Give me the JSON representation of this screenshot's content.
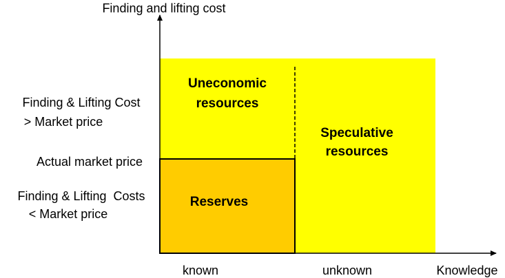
{
  "axes": {
    "y_label": "Finding and lifting cost",
    "x_label": "Knowledge"
  },
  "y_levels": {
    "above": [
      "Finding & Lifting Cost",
      "> Market price"
    ],
    "middle": "Actual market price",
    "below": [
      "Finding & Lifting  Costs",
      "< Market price"
    ]
  },
  "regions": {
    "uneconomic": [
      "Uneconomic",
      "resources"
    ],
    "speculative": [
      "Speculative",
      "resources"
    ],
    "reserves": "Reserves"
  },
  "x_categories": [
    "known",
    "unknown"
  ]
}
